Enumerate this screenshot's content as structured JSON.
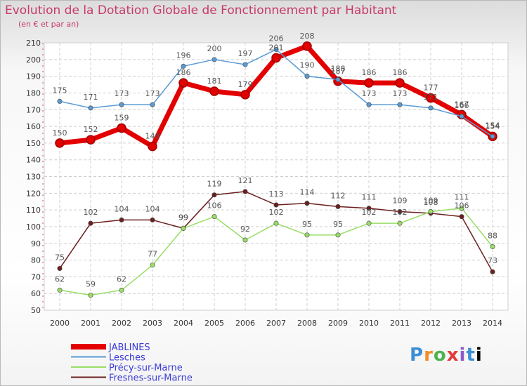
{
  "title": "Evolution de la Dotation Globale de Fonctionnement par Habitant",
  "subtitle": "(en € et par an)",
  "logo_text": "Proxiti",
  "chart_data": {
    "type": "line",
    "x": [
      "2000",
      "2001",
      "2002",
      "2003",
      "2004",
      "2005",
      "2006",
      "2007",
      "2008",
      "2009",
      "2010",
      "2011",
      "2012",
      "2013",
      "2014"
    ],
    "ylim": [
      50,
      210
    ],
    "yticks": [
      50,
      60,
      70,
      80,
      90,
      100,
      110,
      120,
      130,
      140,
      150,
      160,
      170,
      180,
      190,
      200,
      210
    ],
    "grid": true,
    "legend_position": "bottom-left",
    "series": [
      {
        "name": "JABLINES",
        "color": "#e30000",
        "values": [
          150,
          152,
          159,
          148,
          186,
          181,
          179,
          201,
          208,
          187,
          186,
          186,
          177,
          167,
          154
        ]
      },
      {
        "name": "Lesches",
        "color": "#5b9bd5",
        "values": [
          175,
          171,
          173,
          173,
          196,
          200,
          197,
          206,
          190,
          188,
          173,
          173,
          171,
          166,
          154
        ]
      },
      {
        "name": "Précy-sur-Marne",
        "color": "#99dd66",
        "values": [
          62,
          59,
          62,
          77,
          99,
          106,
          92,
          102,
          95,
          95,
          102,
          102,
          109,
          111,
          88
        ]
      },
      {
        "name": "Fresnes-sur-Marne",
        "color": "#6b1f1f",
        "values": [
          75,
          102,
          104,
          104,
          99,
          119,
          121,
          113,
          114,
          112,
          111,
          109,
          108,
          106,
          73
        ]
      }
    ]
  }
}
